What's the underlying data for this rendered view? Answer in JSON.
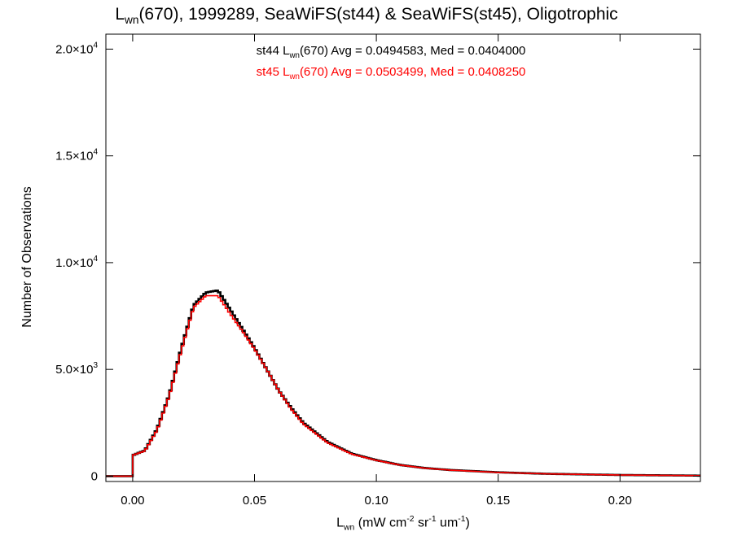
{
  "title": {
    "pre": "L",
    "sub": "wn",
    "post": "(670), 1999289, SeaWiFS(st44) & SeaWiFS(st45), Oligotrophic"
  },
  "stats": [
    {
      "pre": "st44 L",
      "sub": "wn",
      "post": "(670) Avg = 0.0494583, Med = 0.0404000",
      "color": "#000000"
    },
    {
      "pre": "st45 L",
      "sub": "wn",
      "post": "(670) Avg = 0.0503499, Med = 0.0408250",
      "color": "#ff0000"
    }
  ],
  "xlabel": {
    "pre": "L",
    "sub": "wn",
    "a": " (mW cm",
    "sup1": "-2",
    "b": " sr",
    "sup2": "-1",
    "c": " um",
    "sup3": "-1",
    "d": ")"
  },
  "ylabel": "Number of Observations",
  "chart_data": {
    "type": "line",
    "xlim": [
      -0.011,
      0.233
    ],
    "ylim": [
      -250,
      20700
    ],
    "xticks": [
      {
        "value": 0.0,
        "label": "0.00"
      },
      {
        "value": 0.05,
        "label": "0.05"
      },
      {
        "value": 0.1,
        "label": "0.10"
      },
      {
        "value": 0.15,
        "label": "0.15"
      },
      {
        "value": 0.2,
        "label": "0.20"
      }
    ],
    "yticks": [
      {
        "value": 0,
        "mantissa": "0",
        "exponent": ""
      },
      {
        "value": 5000,
        "mantissa": "5.0×10",
        "exponent": "3"
      },
      {
        "value": 10000,
        "mantissa": "1.0×10",
        "exponent": "4"
      },
      {
        "value": 15000,
        "mantissa": "1.5×10",
        "exponent": "4"
      },
      {
        "value": 20000,
        "mantissa": "2.0×10",
        "exponent": "4"
      }
    ],
    "series": [
      {
        "color": "#000000",
        "x": [
          -0.011,
          0.0,
          0.0005,
          0.005,
          0.01,
          0.015,
          0.02,
          0.025,
          0.03,
          0.035,
          0.04,
          0.045,
          0.05,
          0.055,
          0.06,
          0.065,
          0.07,
          0.08,
          0.09,
          0.1,
          0.11,
          0.12,
          0.13,
          0.15,
          0.17,
          0.2,
          0.233
        ],
        "y": [
          0,
          0,
          1000,
          1200,
          2200,
          3800,
          6000,
          8000,
          8600,
          8700,
          7800,
          6900,
          6000,
          5000,
          4000,
          3200,
          2500,
          1600,
          1050,
          750,
          520,
          380,
          290,
          180,
          110,
          55,
          25
        ]
      },
      {
        "color": "#ff0000",
        "x": [
          -0.011,
          0.0,
          0.0005,
          0.005,
          0.01,
          0.015,
          0.02,
          0.025,
          0.03,
          0.035,
          0.04,
          0.045,
          0.05,
          0.055,
          0.06,
          0.065,
          0.07,
          0.08,
          0.09,
          0.1,
          0.11,
          0.12,
          0.13,
          0.15,
          0.17,
          0.2,
          0.233
        ],
        "y": [
          0,
          0,
          1000,
          1180,
          2150,
          3750,
          5900,
          7900,
          8450,
          8450,
          7600,
          6800,
          5950,
          5000,
          4000,
          3150,
          2450,
          1560,
          1030,
          740,
          515,
          375,
          285,
          175,
          108,
          54,
          24
        ]
      }
    ]
  }
}
